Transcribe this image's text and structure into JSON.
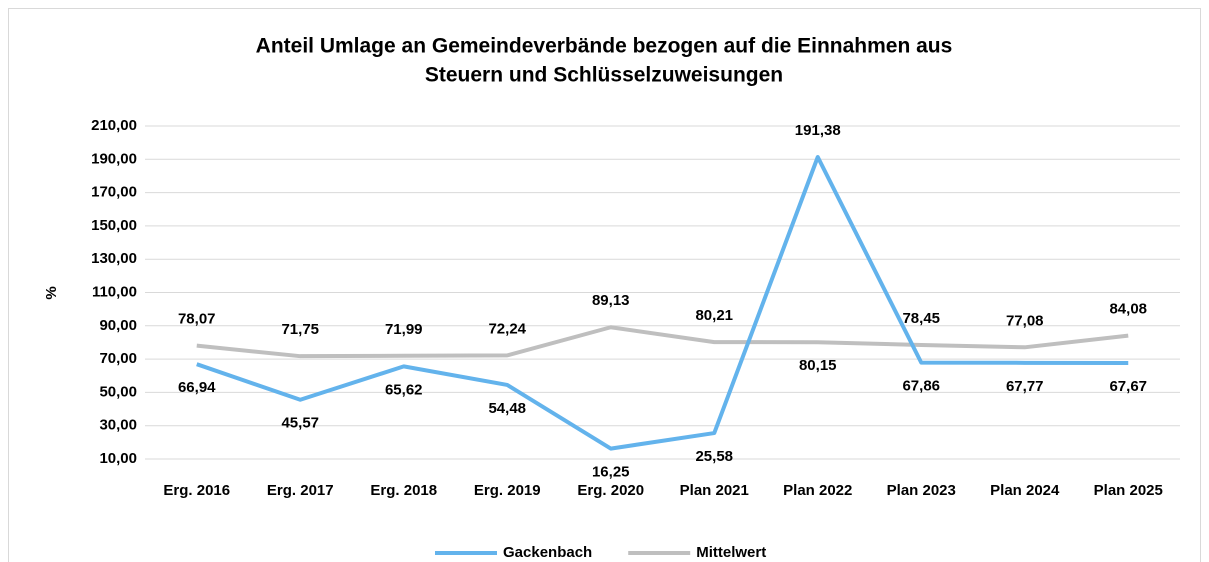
{
  "chart_data": {
    "type": "line",
    "title": [
      "Anteil Umlage an Gemeindeverbände bezogen auf die Einnahmen aus",
      "Steuern und Schlüsselzuweisungen"
    ],
    "y_label": "%",
    "categories": [
      "Erg. 2016",
      "Erg. 2017",
      "Erg. 2018",
      "Erg. 2019",
      "Erg. 2020",
      "Plan 2021",
      "Plan 2022",
      "Plan 2023",
      "Plan 2024",
      "Plan 2025"
    ],
    "series": [
      {
        "name": "Gackenbach",
        "color": "#63b3ec",
        "values": [
          66.94,
          45.57,
          65.62,
          54.48,
          16.25,
          25.58,
          191.38,
          67.86,
          67.77,
          67.67
        ],
        "value_labels": [
          "66,94",
          "45,57",
          "65,62",
          "54,48",
          "16,25",
          "25,58",
          "191,38",
          "67,86",
          "67,77",
          "67,67"
        ]
      },
      {
        "name": "Mittelwert",
        "color": "#bfbfbf",
        "values": [
          78.07,
          71.75,
          71.99,
          72.24,
          89.13,
          80.21,
          80.15,
          78.45,
          77.08,
          84.08
        ],
        "value_labels": [
          "78,07",
          "71,75",
          "71,99",
          "72,24",
          "89,13",
          "80,21",
          "80,15",
          "78,45",
          "77,08",
          "84,08"
        ]
      }
    ],
    "ylim": [
      10,
      210
    ],
    "yticks": [
      {
        "value": 10,
        "label": "10,00"
      },
      {
        "value": 30,
        "label": "30,00"
      },
      {
        "value": 50,
        "label": "50,00"
      },
      {
        "value": 70,
        "label": "70,00"
      },
      {
        "value": 90,
        "label": "90,00"
      },
      {
        "value": 110,
        "label": "110,00"
      },
      {
        "value": 130,
        "label": "130,00"
      },
      {
        "value": 150,
        "label": "150,00"
      },
      {
        "value": 170,
        "label": "170,00"
      },
      {
        "value": 190,
        "label": "190,00"
      },
      {
        "value": 210,
        "label": "210,00"
      }
    ],
    "grid": true,
    "legend": "bottom"
  }
}
